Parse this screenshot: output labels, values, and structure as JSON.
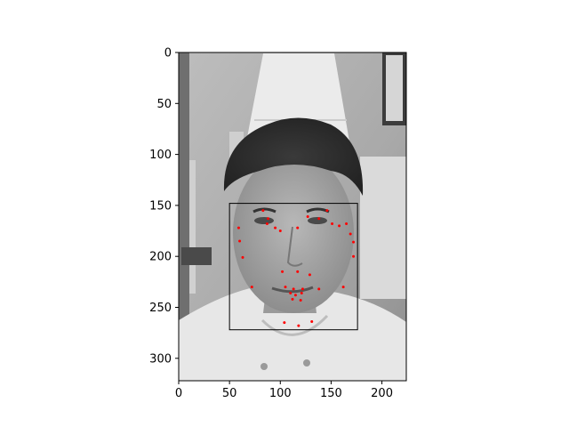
{
  "chart_data": {
    "type": "scatter",
    "title": "",
    "xlabel": "",
    "ylabel": "",
    "xlim": [
      0,
      224
    ],
    "ylim": [
      322,
      0
    ],
    "y_axis_inverted": true,
    "grid": false,
    "background": "grayscale photograph of a young man wearing a white chef hat and chef jacket",
    "x_ticks": [
      0,
      50,
      100,
      150,
      200
    ],
    "y_ticks": [
      0,
      50,
      100,
      150,
      200,
      250,
      300
    ],
    "x_tick_labels": [
      "0",
      "50",
      "100",
      "150",
      "200"
    ],
    "y_tick_labels": [
      "0",
      "50",
      "100",
      "150",
      "200",
      "250",
      "300"
    ],
    "bounding_box": {
      "x0": 50,
      "y0": 148,
      "x1": 176,
      "y1": 272,
      "color": "#000000"
    },
    "series": [
      {
        "marker_color": "#ff0000",
        "points": [
          [
            59,
            172
          ],
          [
            60,
            185
          ],
          [
            63,
            201
          ],
          [
            72,
            230
          ],
          [
            83,
            155
          ],
          [
            87,
            168
          ],
          [
            88,
            163
          ],
          [
            95,
            172
          ],
          [
            100,
            175
          ],
          [
            102,
            215
          ],
          [
            104,
            265
          ],
          [
            105,
            230
          ],
          [
            110,
            236
          ],
          [
            112,
            242
          ],
          [
            113,
            232
          ],
          [
            115,
            238
          ],
          [
            117,
            172
          ],
          [
            117,
            215
          ],
          [
            118,
            268
          ],
          [
            120,
            243
          ],
          [
            121,
            236
          ],
          [
            122,
            232
          ],
          [
            127,
            161
          ],
          [
            129,
            218
          ],
          [
            131,
            264
          ],
          [
            138,
            232
          ],
          [
            138,
            163
          ],
          [
            146,
            155
          ],
          [
            151,
            168
          ],
          [
            158,
            170
          ],
          [
            162,
            230
          ],
          [
            165,
            168
          ],
          [
            169,
            178
          ],
          [
            172,
            186
          ],
          [
            172,
            200
          ]
        ]
      }
    ]
  }
}
